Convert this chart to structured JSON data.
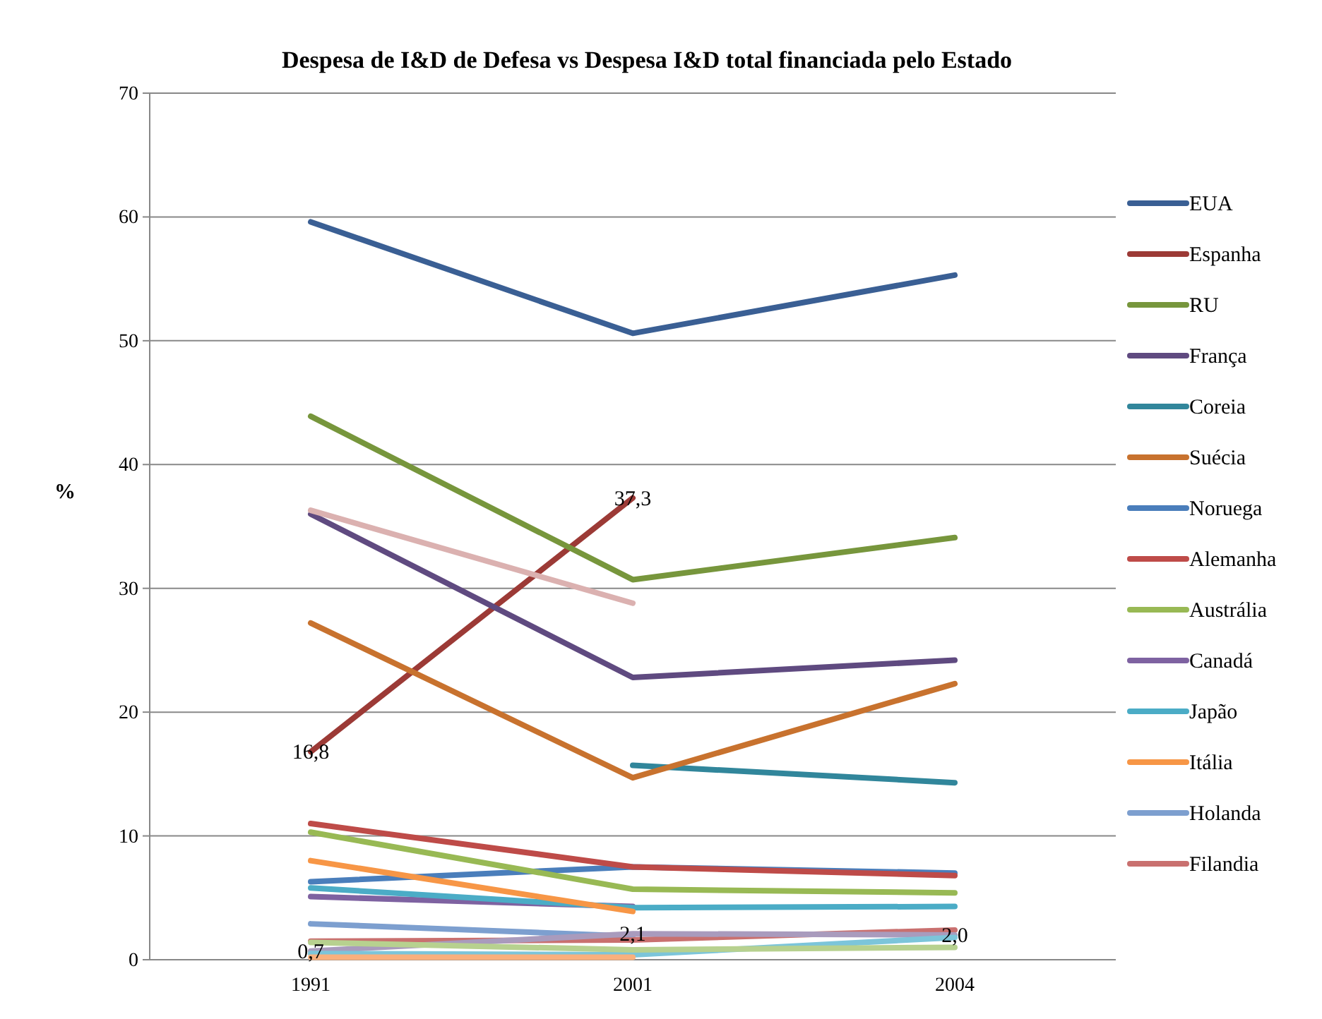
{
  "chart_data": {
    "type": "line",
    "title": "Despesa de I&D de  Defesa  vs Despesa  I&D total financiada pelo Estado",
    "ylabel": "%",
    "categories": [
      "1991",
      "2001",
      "2004"
    ],
    "ylim": [
      0,
      70
    ],
    "yticks": [
      0,
      10,
      20,
      30,
      40,
      50,
      60,
      70
    ],
    "grid": "y",
    "legend": "right",
    "line_style": "solid",
    "marker": "none",
    "series": [
      {
        "name": "EUA",
        "color": "#3a5f94",
        "values": [
          59.6,
          50.6,
          55.3
        ]
      },
      {
        "name": "Espanha",
        "color": "#9c3a36",
        "values": [
          16.8,
          37.3,
          null
        ],
        "value_labels": [
          "16,8",
          "37,3",
          null
        ]
      },
      {
        "name": "RU",
        "color": "#77963c",
        "values": [
          43.9,
          30.7,
          34.1
        ]
      },
      {
        "name": "França",
        "color": "#5f4a80",
        "values": [
          36.0,
          22.8,
          24.2
        ]
      },
      {
        "name": "Coreia",
        "color": "#31869b",
        "values": [
          null,
          15.7,
          14.3
        ]
      },
      {
        "name": "Suécia",
        "color": "#c8722e",
        "values": [
          27.2,
          14.7,
          22.3
        ]
      },
      {
        "name": "Noruega",
        "color": "#4a7ebb",
        "values": [
          6.3,
          7.5,
          7.0
        ]
      },
      {
        "name": "Alemanha",
        "color": "#be4b48",
        "values": [
          11.0,
          7.5,
          6.8
        ]
      },
      {
        "name": "Austrália",
        "color": "#98b954",
        "values": [
          10.3,
          5.7,
          5.4
        ]
      },
      {
        "name": "Canadá",
        "color": "#7e62a1",
        "values": [
          5.1,
          4.3,
          null
        ]
      },
      {
        "name": "Japão",
        "color": "#4bacc6",
        "values": [
          5.8,
          4.2,
          4.3
        ]
      },
      {
        "name": "Itália",
        "color": "#f79646",
        "values": [
          8.0,
          3.9,
          null
        ]
      },
      {
        "name": "Holanda",
        "color": "#7d9fcf",
        "values": [
          2.9,
          1.9,
          null
        ]
      },
      {
        "name": "Filandia",
        "color": "#c9706f",
        "values": [
          1.5,
          1.6,
          2.4
        ]
      },
      {
        "color": "#dbb1b0",
        "values": [
          36.3,
          28.8,
          null
        ]
      },
      {
        "color": "#a99bbd",
        "values": [
          0.7,
          2.1,
          2.0
        ],
        "value_labels": [
          "0,7",
          "2,1",
          "2,0"
        ]
      },
      {
        "color": "#7cc5da",
        "values": [
          0.5,
          0.4,
          1.8
        ]
      },
      {
        "color": "#f9b07d",
        "values": [
          0.2,
          0.2,
          null
        ]
      },
      {
        "color": "#b7d18f",
        "values": [
          1.4,
          0.8,
          1.0
        ]
      }
    ]
  }
}
